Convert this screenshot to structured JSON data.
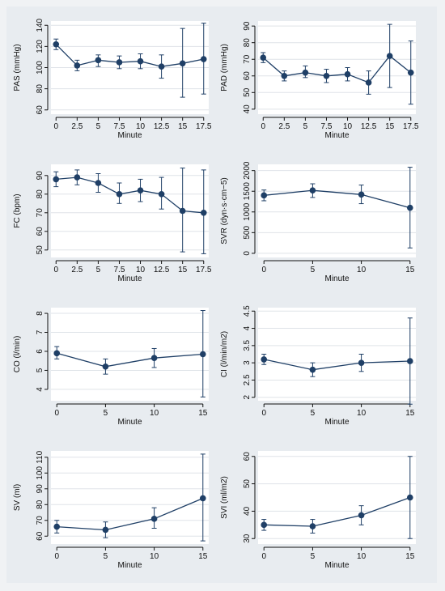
{
  "colors": {
    "series": "#1f3f66",
    "plot_bg": "#ffffff",
    "figure_bg": "#e8ecf0",
    "grid": "#dfe3e8"
  },
  "chart_data": [
    {
      "id": "pas",
      "type": "line",
      "ylabel": "PAS (mmHg)",
      "xlabel": "Minute",
      "x": [
        0,
        2.5,
        5,
        7.5,
        10,
        12.5,
        15,
        17.5
      ],
      "xticks": [
        "0",
        "2.5",
        "5",
        "7.5",
        "10",
        "12.5",
        "15",
        "17.5"
      ],
      "xlim": [
        -0.6,
        18.1
      ],
      "y": [
        122,
        102,
        107,
        105,
        106,
        101,
        104,
        108
      ],
      "lower": [
        117,
        97,
        101,
        99,
        99,
        90,
        72,
        75
      ],
      "upper": [
        127,
        107,
        112,
        111,
        113,
        112,
        137,
        142
      ],
      "yticks": [
        "60",
        "80",
        "100",
        "120",
        "140"
      ],
      "ylim": [
        56,
        144
      ],
      "grid": true
    },
    {
      "id": "pad",
      "type": "line",
      "ylabel": "PAD (mmHg)",
      "xlabel": "Minute",
      "x": [
        0,
        2.5,
        5,
        7.5,
        10,
        12.5,
        15,
        17.5
      ],
      "xticks": [
        "0",
        "2.5",
        "5",
        "7.5",
        "10",
        "12.5",
        "15",
        "17.5"
      ],
      "xlim": [
        -0.6,
        18.1
      ],
      "y": [
        71,
        60,
        62,
        60,
        61,
        56,
        72,
        62
      ],
      "lower": [
        68,
        57,
        59,
        56,
        57,
        49,
        53,
        43
      ],
      "upper": [
        74,
        63,
        66,
        64,
        65,
        63,
        91,
        81
      ],
      "yticks": [
        "40",
        "50",
        "60",
        "70",
        "80",
        "90"
      ],
      "ylim": [
        37,
        93
      ],
      "grid": true
    },
    {
      "id": "fc",
      "type": "line",
      "ylabel": "FC (bpm)",
      "xlabel": "Minute",
      "x": [
        0,
        2.5,
        5,
        7.5,
        10,
        12.5,
        15,
        17.5
      ],
      "xticks": [
        "0",
        "2.5",
        "5",
        "7.5",
        "10",
        "12.5",
        "15",
        "17.5"
      ],
      "xlim": [
        -0.6,
        18.1
      ],
      "y": [
        88,
        89,
        86,
        80,
        82,
        80,
        71,
        70
      ],
      "lower": [
        84,
        85,
        81,
        75,
        76,
        72,
        49,
        48
      ],
      "upper": [
        92,
        93,
        91,
        86,
        88,
        89,
        94,
        93
      ],
      "yticks": [
        "50",
        "60",
        "70",
        "80",
        "90"
      ],
      "ylim": [
        46,
        96
      ],
      "grid": true
    },
    {
      "id": "svr",
      "type": "line",
      "ylabel": "SVR (dyn·s·cm−5)",
      "xlabel": "Minute",
      "x": [
        0,
        5,
        10,
        15
      ],
      "xticks": [
        "0",
        "5",
        "10",
        "15"
      ],
      "xlim": [
        -0.6,
        15.6
      ],
      "y": [
        1400,
        1520,
        1420,
        1100
      ],
      "lower": [
        1270,
        1350,
        1200,
        130
      ],
      "upper": [
        1530,
        1680,
        1650,
        2080
      ],
      "yticks": [
        "0",
        "500",
        "1000",
        "1500",
        "2000"
      ],
      "ylim": [
        -100,
        2150
      ],
      "grid": true
    },
    {
      "id": "co",
      "type": "line",
      "ylabel": "CO (l/min)",
      "xlabel": "Minute",
      "x": [
        0,
        5,
        10,
        15
      ],
      "xticks": [
        "0",
        "5",
        "10",
        "15"
      ],
      "xlim": [
        -0.6,
        15.6
      ],
      "y": [
        5.9,
        5.2,
        5.65,
        5.85
      ],
      "lower": [
        5.6,
        4.8,
        5.15,
        3.6
      ],
      "upper": [
        6.25,
        5.6,
        6.15,
        8.15
      ],
      "yticks": [
        "4",
        "5",
        "6",
        "7",
        "8"
      ],
      "ylim": [
        3.4,
        8.3
      ],
      "grid": true
    },
    {
      "id": "ci",
      "type": "line",
      "ylabel": "CI (l/min/m2)",
      "xlabel": "Minute",
      "x": [
        0,
        5,
        10,
        15
      ],
      "xticks": [
        "0",
        "5",
        "10",
        "15"
      ],
      "xlim": [
        -0.6,
        15.6
      ],
      "y": [
        3.1,
        2.8,
        3.0,
        3.05
      ],
      "lower": [
        2.95,
        2.6,
        2.75,
        1.8
      ],
      "upper": [
        3.25,
        3.0,
        3.25,
        4.3
      ],
      "yticks": [
        "2",
        "2.5",
        "3",
        "3.5",
        "4",
        "4.5"
      ],
      "ylim": [
        1.9,
        4.6
      ],
      "grid": true
    },
    {
      "id": "sv",
      "type": "line",
      "ylabel": "SV (ml)",
      "xlabel": "Minute",
      "x": [
        0,
        5,
        10,
        15
      ],
      "xticks": [
        "0",
        "5",
        "10",
        "15"
      ],
      "xlim": [
        -0.6,
        15.6
      ],
      "y": [
        66,
        64,
        71,
        84
      ],
      "lower": [
        62,
        59,
        65,
        57
      ],
      "upper": [
        70,
        69,
        78,
        112
      ],
      "yticks": [
        "60",
        "70",
        "80",
        "90",
        "100",
        "110"
      ],
      "ylim": [
        55,
        114
      ],
      "grid": true
    },
    {
      "id": "svi",
      "type": "line",
      "ylabel": "SVI (ml/m2)",
      "xlabel": "Minute",
      "x": [
        0,
        5,
        10,
        15
      ],
      "xticks": [
        "0",
        "5",
        "10",
        "15"
      ],
      "xlim": [
        -0.6,
        15.6
      ],
      "y": [
        35,
        34.5,
        38.5,
        45
      ],
      "lower": [
        33,
        32,
        35,
        30
      ],
      "upper": [
        37,
        37,
        42,
        60
      ],
      "yticks": [
        "30",
        "40",
        "50",
        "60"
      ],
      "ylim": [
        28,
        62
      ],
      "grid": true
    }
  ]
}
